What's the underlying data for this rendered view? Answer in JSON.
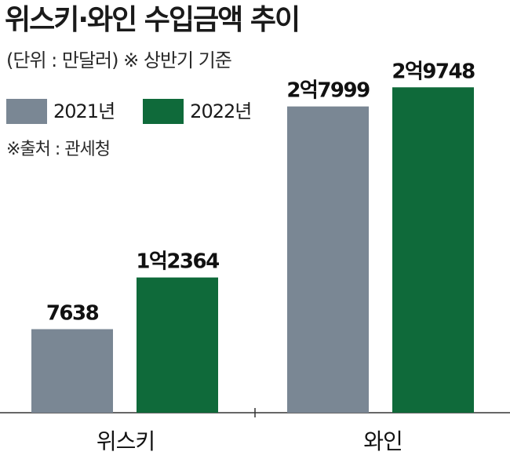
{
  "title": "위스키·와인 수입금액 추이",
  "subtitle": "(단위 : 만달러)  ※ 상반기 기준",
  "source": "※출처 : 관세청",
  "colors": {
    "y2021": "#7a8794",
    "y2022": "#0f6a3a",
    "axis": "#333333"
  },
  "chart_data": {
    "type": "bar",
    "categories": [
      "위스키",
      "와인"
    ],
    "series": [
      {
        "name": "2021년",
        "values": [
          7638,
          27999
        ],
        "labels": [
          "7638",
          "2억7999"
        ]
      },
      {
        "name": "2022년",
        "values": [
          12364,
          29748
        ],
        "labels": [
          "1억2364",
          "2억9748"
        ]
      }
    ],
    "ylim": [
      0,
      34000
    ],
    "legend": "top-left",
    "grid": false
  }
}
